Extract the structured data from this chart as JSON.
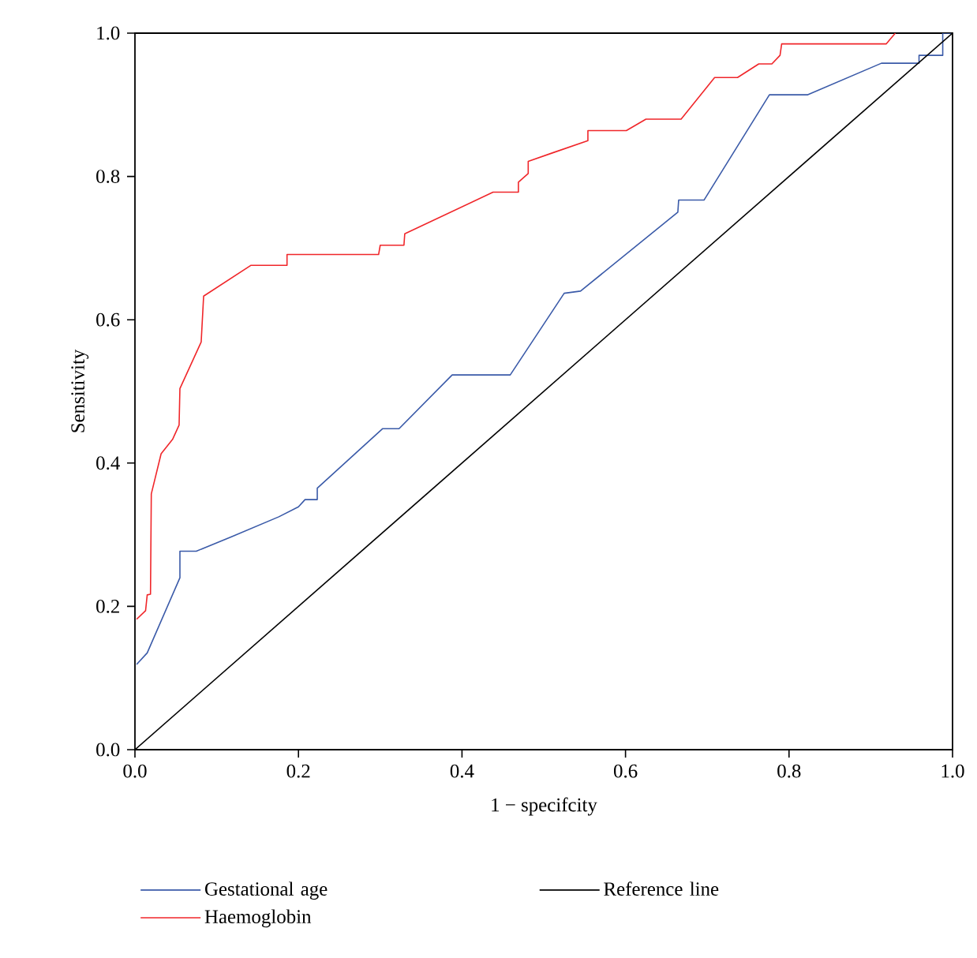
{
  "chart_data": {
    "type": "line",
    "xlabel": "1 − specifcity",
    "ylabel": "Sensitivity",
    "xlim": [
      0,
      1
    ],
    "ylim": [
      0,
      1
    ],
    "xticks": [
      {
        "value": 0,
        "label": "0.0"
      },
      {
        "value": 0.2,
        "label": "0.2"
      },
      {
        "value": 0.4,
        "label": "0.4"
      },
      {
        "value": 0.6,
        "label": "0.6"
      },
      {
        "value": 0.8,
        "label": "0.8"
      },
      {
        "value": 1,
        "label": "1.0"
      }
    ],
    "yticks": [
      {
        "value": 0,
        "label": "0.0"
      },
      {
        "value": 0.2,
        "label": "0.2"
      },
      {
        "value": 0.4,
        "label": "0.4"
      },
      {
        "value": 0.6,
        "label": "0.6"
      },
      {
        "value": 0.8,
        "label": "0.8"
      },
      {
        "value": 1,
        "label": "1.0"
      }
    ],
    "legend": "bottom",
    "series": [
      {
        "name": "Gestational age",
        "color": "#3a5aa8",
        "x": [
          0.002,
          0.015,
          0.055,
          0.055,
          0.075,
          0.118,
          0.176,
          0.2,
          0.208,
          0.223,
          0.223,
          0.303,
          0.323,
          0.388,
          0.459,
          0.525,
          0.545,
          0.664,
          0.665,
          0.696,
          0.776,
          0.823,
          0.913,
          0.959,
          0.959,
          0.988,
          0.988,
          1.0
        ],
        "values": [
          0.119,
          0.135,
          0.24,
          0.277,
          0.277,
          0.297,
          0.325,
          0.339,
          0.349,
          0.349,
          0.365,
          0.448,
          0.448,
          0.523,
          0.523,
          0.637,
          0.64,
          0.75,
          0.767,
          0.767,
          0.914,
          0.914,
          0.958,
          0.958,
          0.969,
          0.969,
          1.0,
          1.0
        ]
      },
      {
        "name": "Reference line",
        "color": "#000000",
        "x": [
          0,
          1
        ],
        "values": [
          0,
          1
        ]
      },
      {
        "name": "Haemoglobin",
        "color": "#f0262a",
        "x": [
          0.002,
          0.013,
          0.015,
          0.019,
          0.02,
          0.032,
          0.046,
          0.054,
          0.055,
          0.081,
          0.084,
          0.142,
          0.186,
          0.186,
          0.298,
          0.3,
          0.329,
          0.33,
          0.438,
          0.469,
          0.469,
          0.481,
          0.481,
          0.511,
          0.554,
          0.554,
          0.601,
          0.625,
          0.668,
          0.709,
          0.737,
          0.763,
          0.779,
          0.789,
          0.791,
          0.919,
          0.93
        ],
        "values": [
          0.182,
          0.194,
          0.216,
          0.217,
          0.357,
          0.413,
          0.433,
          0.453,
          0.504,
          0.569,
          0.633,
          0.676,
          0.676,
          0.691,
          0.691,
          0.704,
          0.704,
          0.72,
          0.778,
          0.778,
          0.792,
          0.804,
          0.821,
          0.833,
          0.85,
          0.864,
          0.864,
          0.88,
          0.88,
          0.938,
          0.938,
          0.957,
          0.957,
          0.969,
          0.985,
          0.985,
          1.0
        ]
      }
    ]
  }
}
